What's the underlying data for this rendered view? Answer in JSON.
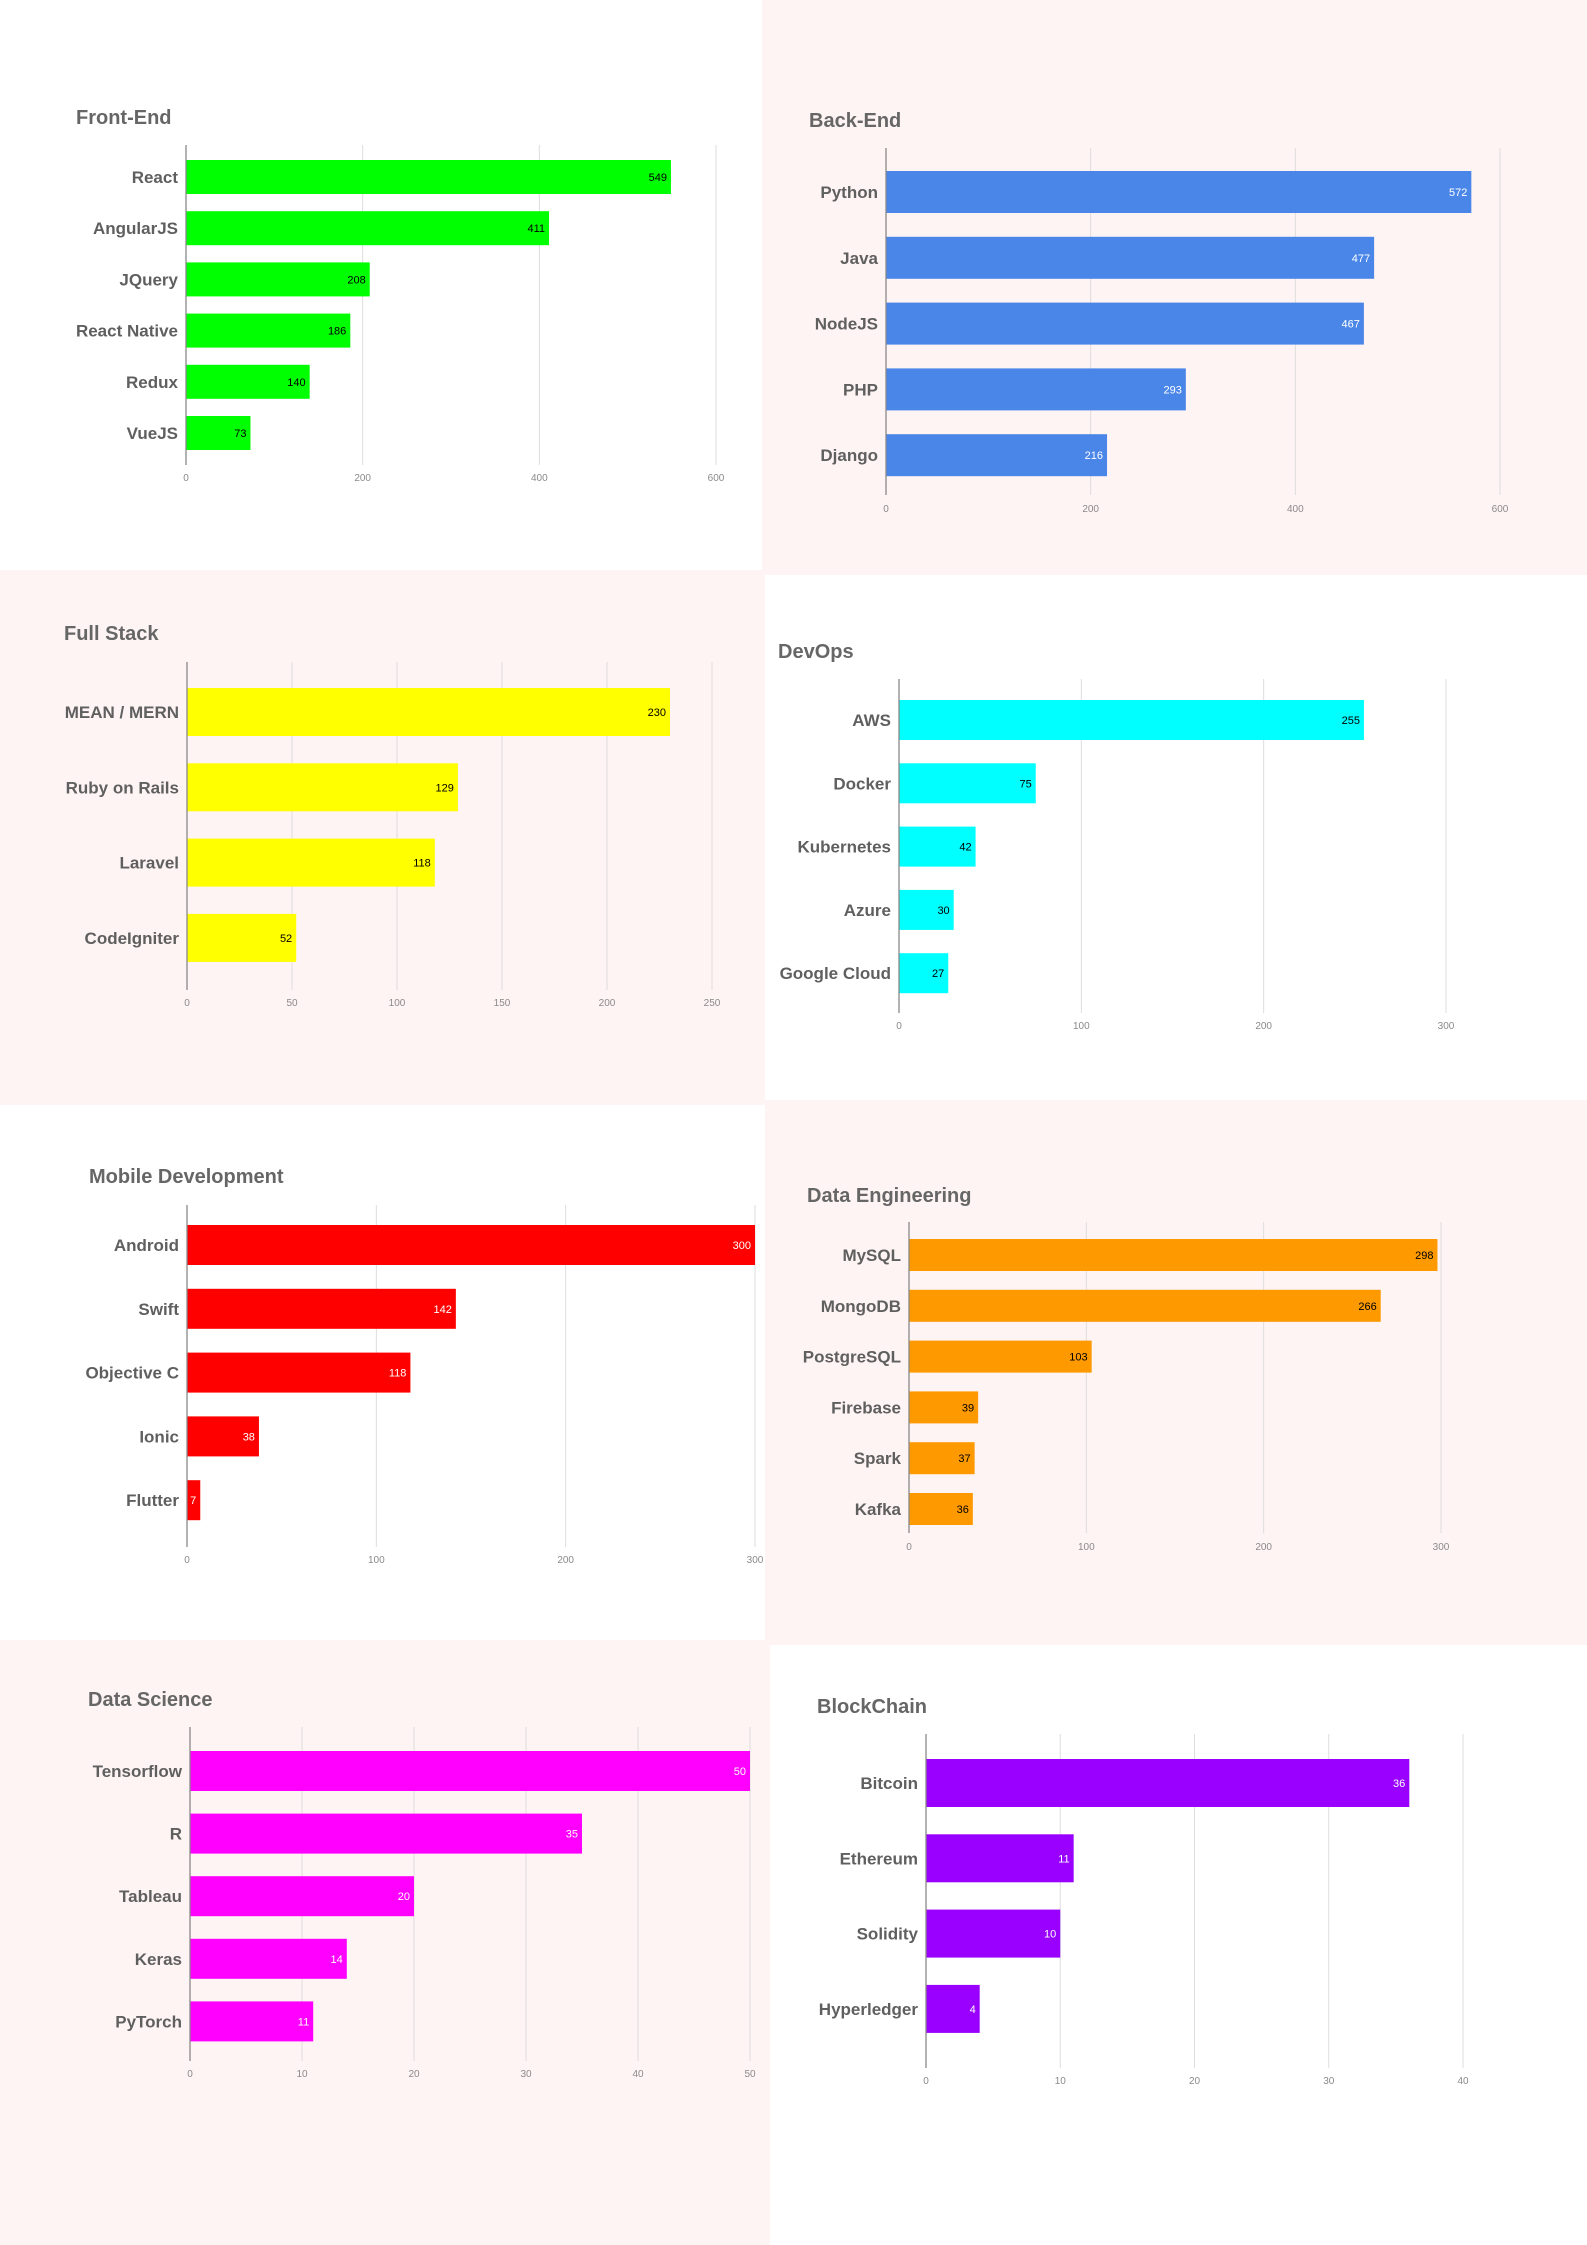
{
  "chart_data": [
    {
      "type": "bar",
      "title": "Front-End",
      "categories": [
        "React",
        "AngularJS",
        "JQuery",
        "React Native",
        "Redux",
        "VueJS"
      ],
      "values": [
        549,
        411,
        208,
        186,
        140,
        73
      ],
      "xlim": [
        0,
        600
      ],
      "ticks": [
        0,
        200,
        400,
        600
      ],
      "color": "#00ff00",
      "label_color": "#000000",
      "grid": true,
      "orientation": "horizontal"
    },
    {
      "type": "bar",
      "title": "Back-End",
      "categories": [
        "Python",
        "Java",
        "NodeJS",
        "PHP",
        "Django"
      ],
      "values": [
        572,
        477,
        467,
        293,
        216
      ],
      "xlim": [
        0,
        600
      ],
      "ticks": [
        0,
        200,
        400,
        600
      ],
      "color": "#4a86e8",
      "label_color": "#ffffff",
      "grid": true,
      "orientation": "horizontal"
    },
    {
      "type": "bar",
      "title": "Full Stack",
      "categories": [
        "MEAN / MERN",
        "Ruby on Rails",
        "Laravel",
        "CodeIgniter"
      ],
      "values": [
        230,
        129,
        118,
        52
      ],
      "xlim": [
        0,
        250
      ],
      "ticks": [
        0,
        50,
        100,
        150,
        200,
        250
      ],
      "color": "#ffff00",
      "label_color": "#000000",
      "grid": true,
      "orientation": "horizontal"
    },
    {
      "type": "bar",
      "title": "DevOps",
      "categories": [
        "AWS",
        "Docker",
        "Kubernetes",
        "Azure",
        "Google Cloud"
      ],
      "values": [
        255,
        75,
        42,
        30,
        27
      ],
      "xlim": [
        0,
        300
      ],
      "ticks": [
        0,
        100,
        200,
        300
      ],
      "color": "#00ffff",
      "label_color": "#000000",
      "grid": true,
      "orientation": "horizontal"
    },
    {
      "type": "bar",
      "title": "Mobile Development",
      "categories": [
        "Android",
        "Swift",
        "Objective C",
        "Ionic",
        "Flutter"
      ],
      "values": [
        300,
        142,
        118,
        38,
        7
      ],
      "xlim": [
        0,
        300
      ],
      "ticks": [
        0,
        100,
        200,
        300
      ],
      "color": "#ff0000",
      "label_color": "#ffffff",
      "grid": true,
      "orientation": "horizontal"
    },
    {
      "type": "bar",
      "title": "Data Engineering",
      "categories": [
        "MySQL",
        "MongoDB",
        "PostgreSQL",
        "Firebase",
        "Spark",
        "Kafka"
      ],
      "values": [
        298,
        266,
        103,
        39,
        37,
        36
      ],
      "xlim": [
        0,
        300
      ],
      "ticks": [
        0,
        100,
        200,
        300
      ],
      "color": "#ff9900",
      "label_color": "#000000",
      "grid": true,
      "orientation": "horizontal"
    },
    {
      "type": "bar",
      "title": "Data Science",
      "categories": [
        "Tensorflow",
        "R",
        "Tableau",
        "Keras",
        "PyTorch"
      ],
      "values": [
        50,
        35,
        20,
        14,
        11
      ],
      "xlim": [
        0,
        50
      ],
      "ticks": [
        0,
        10,
        20,
        30,
        40,
        50
      ],
      "color": "#ff00ff",
      "label_color": "#ffffff",
      "grid": true,
      "orientation": "horizontal"
    },
    {
      "type": "bar",
      "title": "BlockChain",
      "categories": [
        "Bitcoin",
        "Ethereum",
        "Solidity",
        "Hyperledger"
      ],
      "values": [
        36,
        11,
        10,
        4
      ],
      "xlim": [
        0,
        40
      ],
      "ticks": [
        0,
        10,
        20,
        30,
        40
      ],
      "color": "#9900ff",
      "label_color": "#ffffff",
      "grid": true,
      "orientation": "horizontal"
    }
  ],
  "panel_backgrounds": [
    "#ffffff",
    "#fff4f4",
    "#fff4f4",
    "#ffffff",
    "#ffffff",
    "#fff4f4",
    "#fff4f4",
    "#ffffff"
  ]
}
